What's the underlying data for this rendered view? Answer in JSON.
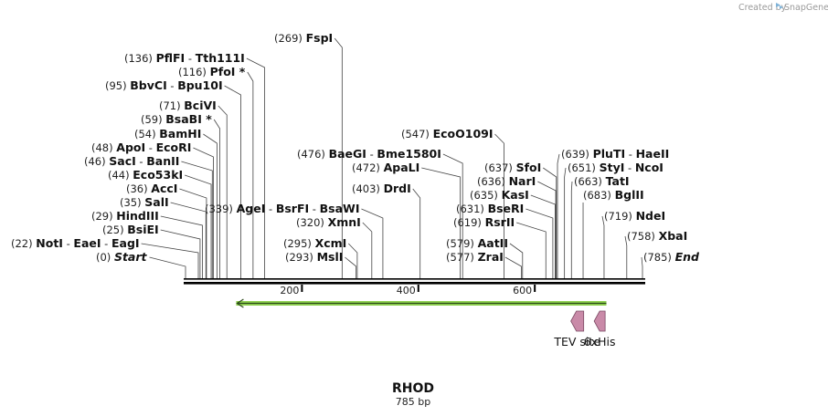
{
  "credit": "Created by",
  "credit_brand": "SnapGene",
  "plasmid_name": "RHOD",
  "plasmid_length": "785 bp",
  "axis_ticks": [
    "200",
    "400",
    "600"
  ],
  "axis_tick_values": [
    200,
    400,
    600
  ],
  "sequence_length": 785,
  "features": [
    {
      "name": "TEV site",
      "start": 662,
      "end": 684
    },
    {
      "name": "6xHis",
      "start": 702,
      "end": 720
    }
  ],
  "orf": {
    "start": 87,
    "end": 723,
    "color": "#8fd14f"
  },
  "colors": {
    "feature": "#c98aa8",
    "feature_stroke": "#7a4a63",
    "backbone": "#000000",
    "orf": "#8fd14f"
  },
  "site_labels": [
    {
      "num": "(22)",
      "parts": [
        {
          "t": "NotI"
        },
        {
          "sep": " - "
        },
        {
          "t": "EaeI"
        },
        {
          "sep": " - "
        },
        {
          "t": "EagI"
        }
      ],
      "pos": 22
    },
    {
      "num": "(0)",
      "parts": [
        {
          "t": "Start",
          "it": true
        }
      ],
      "pos": 0
    },
    {
      "num": "(25)",
      "parts": [
        {
          "t": "BsiEI"
        }
      ],
      "pos": 25
    },
    {
      "num": "(29)",
      "parts": [
        {
          "t": "HindIII"
        }
      ],
      "pos": 29
    },
    {
      "num": "(35)",
      "parts": [
        {
          "t": "SalI"
        }
      ],
      "pos": 35
    },
    {
      "num": "(36)",
      "parts": [
        {
          "t": "AccI"
        }
      ],
      "pos": 36
    },
    {
      "num": "(44)",
      "parts": [
        {
          "t": "Eco53kI"
        }
      ],
      "pos": 44
    },
    {
      "num": "(46)",
      "parts": [
        {
          "t": "SacI"
        },
        {
          "sep": " - "
        },
        {
          "t": "BanII"
        }
      ],
      "pos": 46
    },
    {
      "num": "(48)",
      "parts": [
        {
          "t": "ApoI"
        },
        {
          "sep": " - "
        },
        {
          "t": "EcoRI"
        }
      ],
      "pos": 48
    },
    {
      "num": "(54)",
      "parts": [
        {
          "t": "BamHI"
        }
      ],
      "pos": 54
    },
    {
      "num": "(59)",
      "parts": [
        {
          "t": "BsaBI *"
        }
      ],
      "pos": 59
    },
    {
      "num": "(71)",
      "parts": [
        {
          "t": "BciVI"
        }
      ],
      "pos": 71
    },
    {
      "num": "(95)",
      "parts": [
        {
          "t": "BbvCI"
        },
        {
          "sep": " - "
        },
        {
          "t": "Bpu10I"
        }
      ],
      "pos": 95
    },
    {
      "num": "(116)",
      "parts": [
        {
          "t": "PfoI *"
        }
      ],
      "pos": 116
    },
    {
      "num": "(136)",
      "parts": [
        {
          "t": "PflFI"
        },
        {
          "sep": " - "
        },
        {
          "t": "Tth111I"
        }
      ],
      "pos": 136
    },
    {
      "num": "(269)",
      "parts": [
        {
          "t": "FspI"
        }
      ],
      "pos": 269
    },
    {
      "num": "(339)",
      "parts": [
        {
          "t": "AgeI"
        },
        {
          "sep": " - "
        },
        {
          "t": "BsrFI"
        },
        {
          "sep": " - "
        },
        {
          "t": "BsaWI"
        }
      ],
      "pos": 339
    },
    {
      "num": "(476)",
      "parts": [
        {
          "t": "BaeGI"
        },
        {
          "sep": " - "
        },
        {
          "t": "Bme1580I"
        }
      ],
      "pos": 476
    },
    {
      "num": "(472)",
      "parts": [
        {
          "t": "ApaLI"
        }
      ],
      "pos": 472
    },
    {
      "num": "(403)",
      "parts": [
        {
          "t": "DrdI"
        }
      ],
      "pos": 403
    },
    {
      "num": "(320)",
      "parts": [
        {
          "t": "XmnI"
        }
      ],
      "pos": 320
    },
    {
      "num": "(295)",
      "parts": [
        {
          "t": "XcmI"
        }
      ],
      "pos": 295
    },
    {
      "num": "(293)",
      "parts": [
        {
          "t": "MslI"
        }
      ],
      "pos": 293
    },
    {
      "num": "(547)",
      "parts": [
        {
          "t": "EcoO109I"
        }
      ],
      "pos": 547
    },
    {
      "num": "(637)",
      "parts": [
        {
          "t": "SfoI"
        }
      ],
      "pos": 637
    },
    {
      "num": "(636)",
      "parts": [
        {
          "t": "NarI"
        }
      ],
      "pos": 636
    },
    {
      "num": "(635)",
      "parts": [
        {
          "t": "KasI"
        }
      ],
      "pos": 635
    },
    {
      "num": "(631)",
      "parts": [
        {
          "t": "BseRI"
        }
      ],
      "pos": 631
    },
    {
      "num": "(619)",
      "parts": [
        {
          "t": "RsrII"
        }
      ],
      "pos": 619
    },
    {
      "num": "(579)",
      "parts": [
        {
          "t": "AatII"
        }
      ],
      "pos": 579
    },
    {
      "num": "(577)",
      "parts": [
        {
          "t": "ZraI"
        }
      ],
      "pos": 577
    },
    {
      "num": "(639)",
      "parts": [
        {
          "t": "PluTI"
        },
        {
          "sep": " - "
        },
        {
          "t": "HaeII"
        }
      ],
      "pos": 639
    },
    {
      "num": "(651)",
      "parts": [
        {
          "t": "StyI"
        },
        {
          "sep": " - "
        },
        {
          "t": "NcoI"
        }
      ],
      "pos": 651
    },
    {
      "num": "(663)",
      "parts": [
        {
          "t": "TatI"
        }
      ],
      "pos": 663
    },
    {
      "num": "(683)",
      "parts": [
        {
          "t": "BglII"
        }
      ],
      "pos": 683
    },
    {
      "num": "(719)",
      "parts": [
        {
          "t": "NdeI"
        }
      ],
      "pos": 719
    },
    {
      "num": "(758)",
      "parts": [
        {
          "t": "XbaI"
        }
      ],
      "pos": 758
    },
    {
      "num": "(785)",
      "parts": [
        {
          "t": "End",
          "it": true
        }
      ],
      "pos": 785
    }
  ]
}
